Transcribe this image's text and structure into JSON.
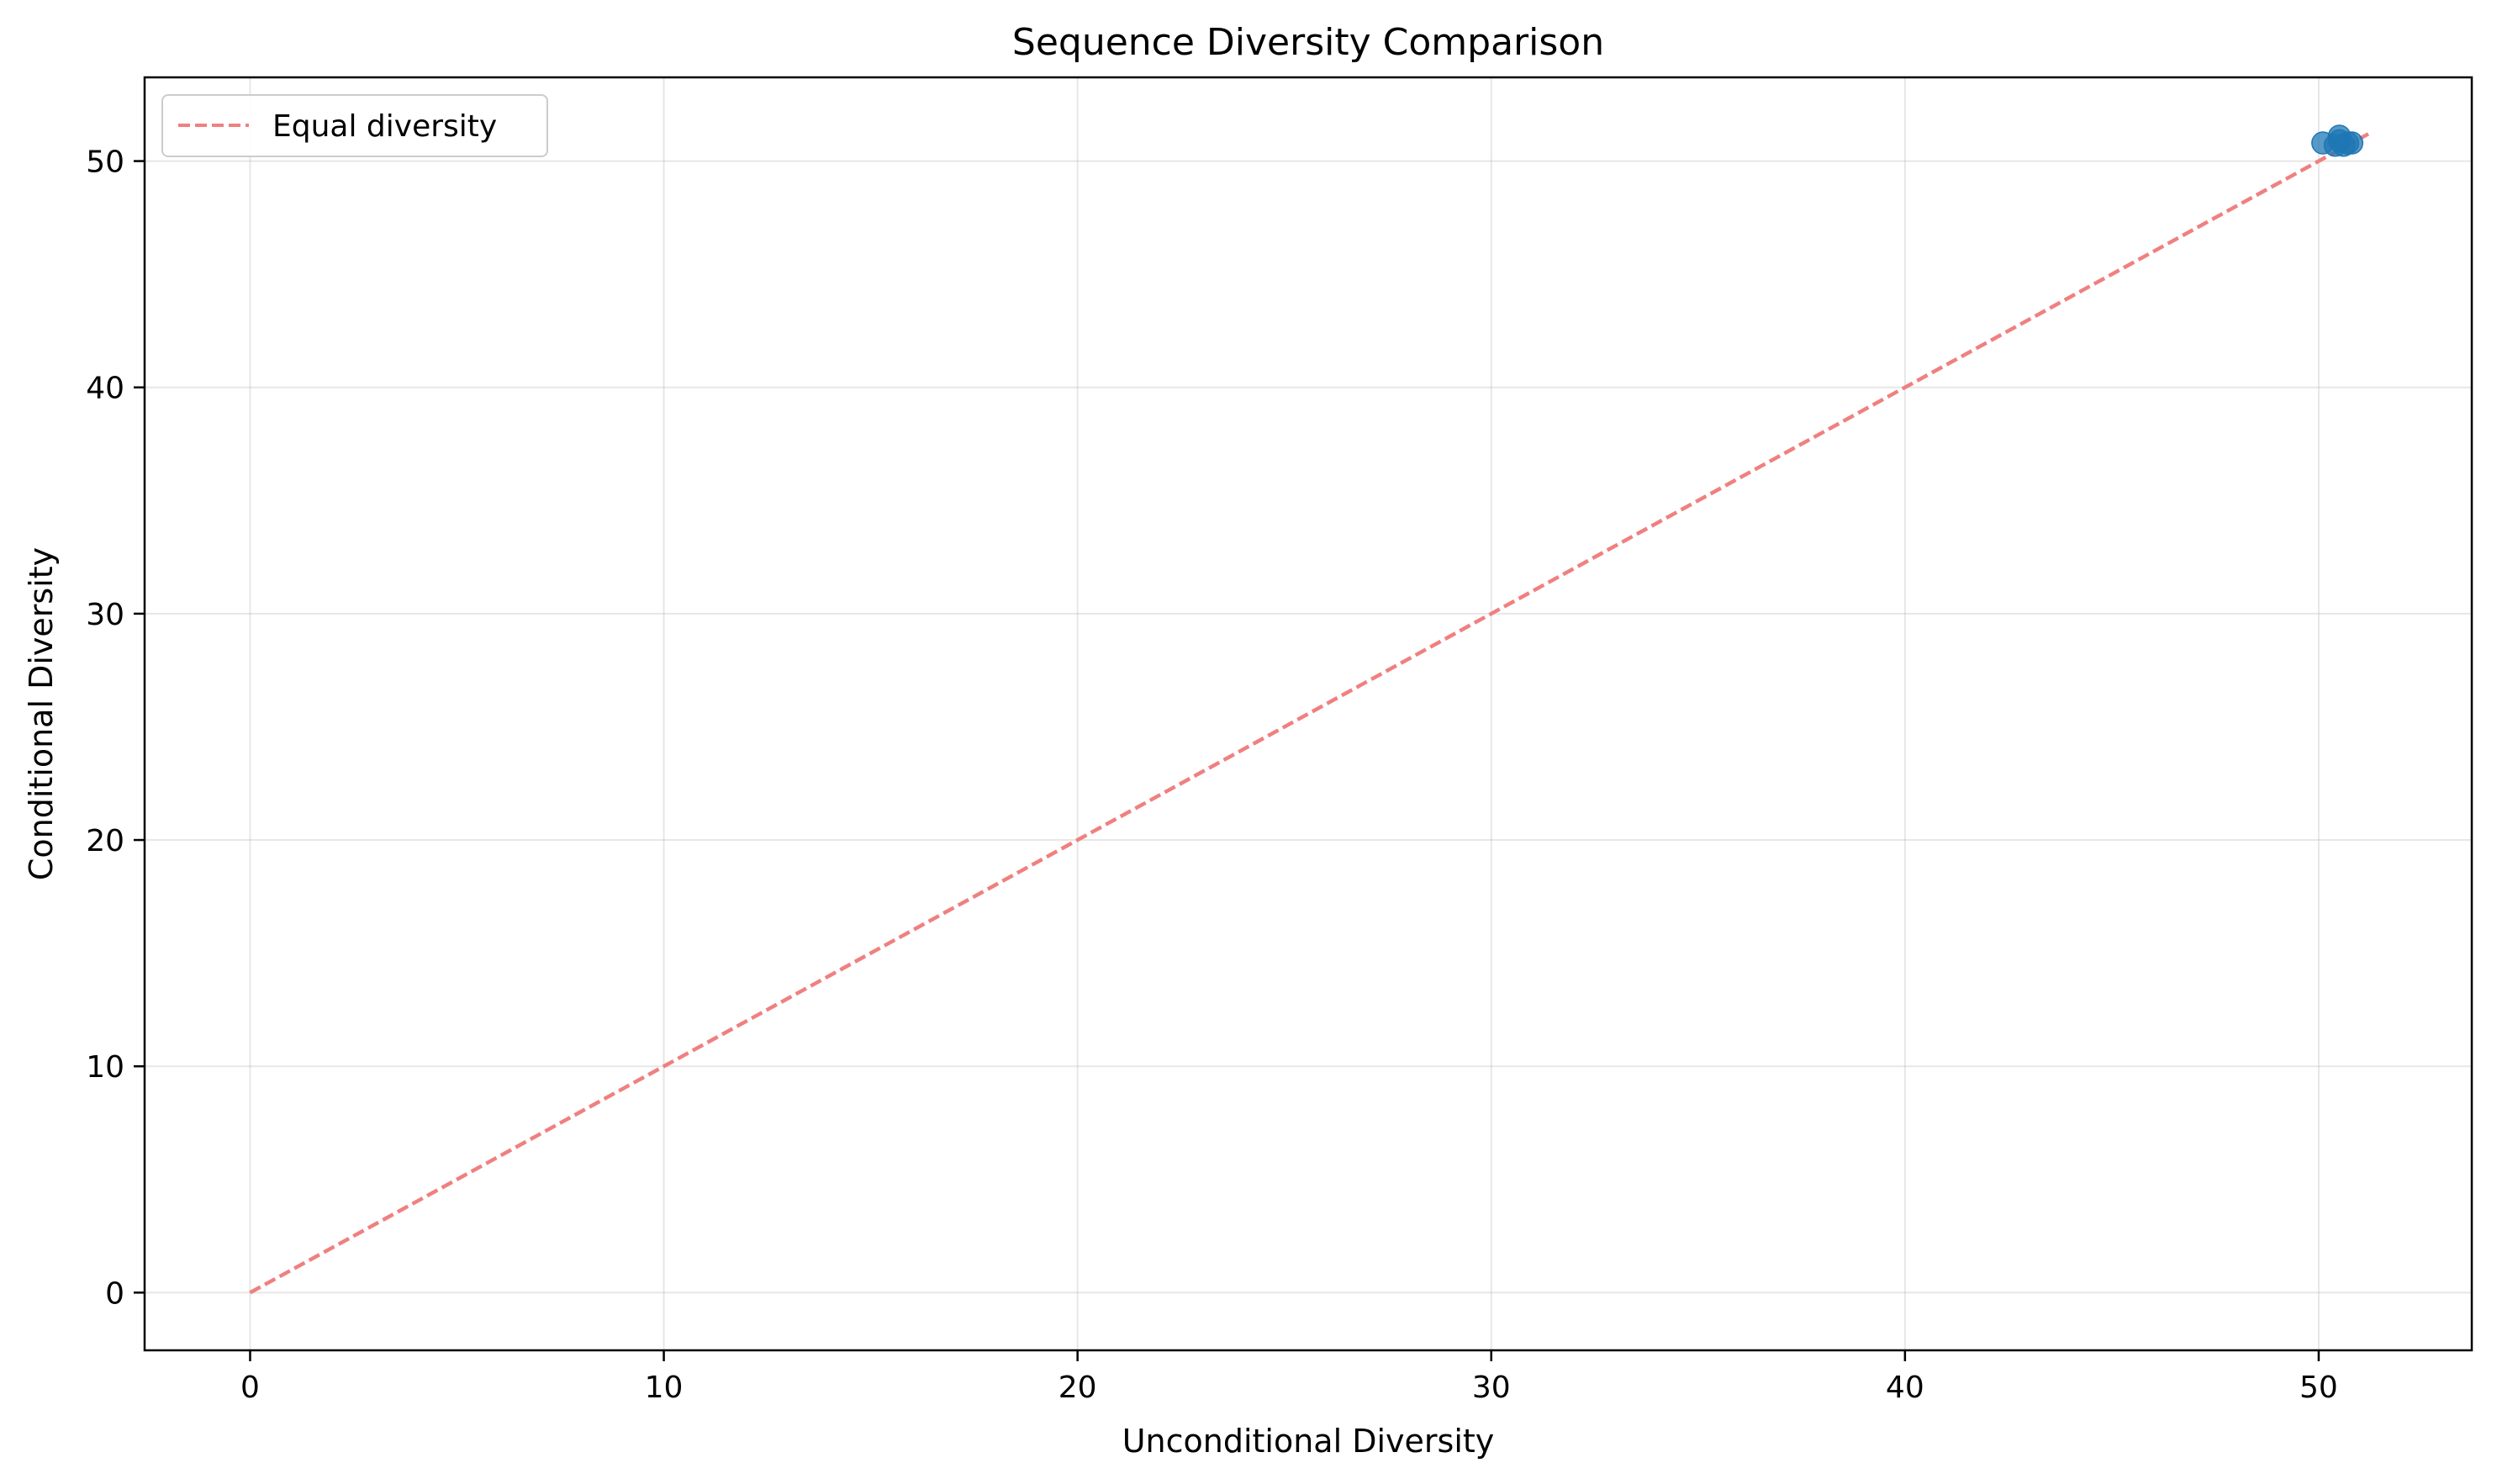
{
  "chart_data": {
    "type": "scatter",
    "title": "Sequence Diversity Comparison",
    "xlabel": "Unconditional Diversity",
    "ylabel": "Conditional Diversity",
    "xlim": [
      -2.55,
      53.7
    ],
    "ylim": [
      -2.55,
      53.7
    ],
    "xticks": [
      0,
      10,
      20,
      30,
      40,
      50
    ],
    "yticks": [
      0,
      10,
      20,
      30,
      40,
      50
    ],
    "grid": true,
    "legend_position": "top-left",
    "points": [
      {
        "x": 50.1,
        "y": 50.8
      },
      {
        "x": 50.4,
        "y": 50.7
      },
      {
        "x": 50.5,
        "y": 50.9
      },
      {
        "x": 50.5,
        "y": 51.1
      },
      {
        "x": 50.6,
        "y": 50.7
      },
      {
        "x": 50.7,
        "y": 50.8
      },
      {
        "x": 50.8,
        "y": 50.8
      }
    ],
    "reference_line": {
      "name": "Equal diversity",
      "x": [
        0,
        51.2
      ],
      "y": [
        0,
        51.2
      ]
    },
    "colors": {
      "points": "#1f77b4",
      "reference_line": "#f08080"
    }
  }
}
